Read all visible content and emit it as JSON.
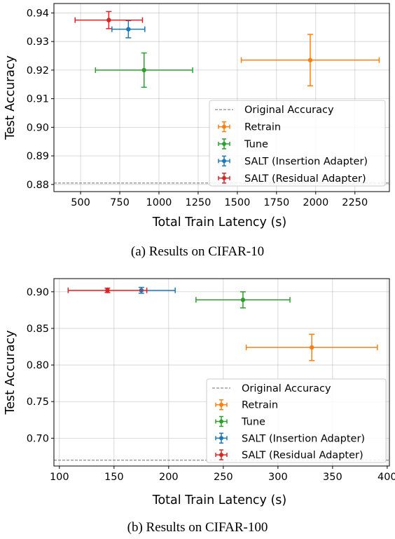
{
  "chart_data": [
    {
      "type": "scatter",
      "caption": "(a) Results on CIFAR-10",
      "xlabel": "Total Train Latency (s)",
      "ylabel": "Test Accuracy",
      "xlim": [
        330,
        2470
      ],
      "ylim": [
        0.8775,
        0.9433
      ],
      "xticks": [
        500,
        750,
        1000,
        1250,
        1500,
        1750,
        2000,
        2250
      ],
      "yticks": [
        0.88,
        0.89,
        0.9,
        0.91,
        0.92,
        0.93,
        0.94
      ],
      "ytick_labels": [
        "0.88",
        "0.89",
        "0.90",
        "0.91",
        "0.92",
        "0.93",
        "0.94"
      ],
      "grid": true,
      "legend_position": "lower right",
      "reference_line": {
        "name": "Original Accuracy",
        "y": 0.8805
      },
      "series": [
        {
          "name": "Retrain",
          "color": "#ff7f0e",
          "x": 1965,
          "y": 0.9235,
          "xerr": 440,
          "yerr": 0.009
        },
        {
          "name": "Tune",
          "color": "#2ca02c",
          "x": 905,
          "y": 0.92,
          "xerr": 310,
          "yerr": 0.006
        },
        {
          "name": "SALT (Insertion Adapter)",
          "color": "#1f77b4",
          "x": 805,
          "y": 0.9343,
          "xerr": 105,
          "yerr": 0.003
        },
        {
          "name": "SALT (Residual Adapter)",
          "color": "#d62728",
          "x": 680,
          "y": 0.9375,
          "xerr": 215,
          "yerr": 0.003
        }
      ]
    },
    {
      "type": "scatter",
      "caption": "(b) Results on CIFAR-100",
      "xlabel": "Total Train Latency (s)",
      "ylabel": "Test Accuracy",
      "xlim": [
        95,
        402
      ],
      "ylim": [
        0.662,
        0.918
      ],
      "xticks": [
        100,
        150,
        200,
        250,
        300,
        350,
        400
      ],
      "yticks": [
        0.7,
        0.75,
        0.8,
        0.85,
        0.9
      ],
      "ytick_labels": [
        "0.70",
        "0.75",
        "0.80",
        "0.85",
        "0.90"
      ],
      "grid": true,
      "legend_position": "lower right",
      "reference_line": {
        "name": "Original Accuracy",
        "y": 0.67
      },
      "series": [
        {
          "name": "Retrain",
          "color": "#ff7f0e",
          "x": 331,
          "y": 0.824,
          "xerr": 60,
          "yerr": 0.018
        },
        {
          "name": "Tune",
          "color": "#2ca02c",
          "x": 268,
          "y": 0.889,
          "xerr": 43,
          "yerr": 0.011
        },
        {
          "name": "SALT (Insertion Adapter)",
          "color": "#1f77b4",
          "x": 175,
          "y": 0.902,
          "xerr": 31,
          "yerr": 0.004
        },
        {
          "name": "SALT (Residual Adapter)",
          "color": "#d62728",
          "x": 144,
          "y": 0.902,
          "xerr": 36,
          "yerr": 0.003
        }
      ]
    }
  ]
}
